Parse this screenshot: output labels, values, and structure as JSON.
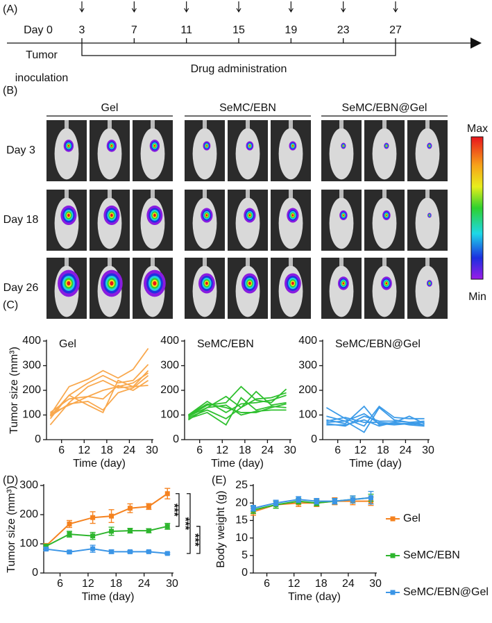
{
  "panel_labels": [
    "(A)",
    "(B)",
    "(C)",
    "(D)",
    "(E)"
  ],
  "timeline": {
    "start_label": "Day 0",
    "days": [
      3,
      7,
      11,
      15,
      19,
      23,
      27
    ],
    "inoculation_label": [
      "Tumor",
      "inoculation"
    ],
    "administration_label": "Drug administration"
  },
  "imaging": {
    "groups": [
      "Gel",
      "SeMC/EBN",
      "SeMC/EBN@Gel"
    ],
    "rows": [
      "Day 3",
      "Day 18",
      "Day 26"
    ],
    "colorbar": {
      "max_label": "Max",
      "min_label": "Min"
    }
  },
  "chart_data": [
    {
      "type": "line",
      "title": "Gel",
      "ylabel": "Tumor size (mm³)",
      "xlabel": "Time (day)",
      "x": [
        3,
        8,
        13,
        17,
        21,
        25,
        29
      ],
      "xlim": [
        2,
        30
      ],
      "xticks": [
        6,
        12,
        18,
        24,
        30
      ],
      "ylim": [
        0,
        400
      ],
      "yticks": [
        0,
        100,
        200,
        300,
        400
      ],
      "series": [
        {
          "color": "#f9a84d",
          "values": [
            100,
            215,
            245,
            280,
            250,
            285,
            370
          ]
        },
        {
          "color": "#f9a84d",
          "values": [
            85,
            180,
            230,
            260,
            230,
            240,
            305
          ]
        },
        {
          "color": "#f9a84d",
          "values": [
            60,
            150,
            215,
            240,
            210,
            215,
            280
          ]
        },
        {
          "color": "#f9a84d",
          "values": [
            110,
            165,
            175,
            200,
            215,
            230,
            270
          ]
        },
        {
          "color": "#f9a84d",
          "values": [
            95,
            145,
            155,
            120,
            190,
            210,
            260
          ]
        },
        {
          "color": "#f9a84d",
          "values": [
            105,
            140,
            175,
            165,
            220,
            200,
            240
          ]
        },
        {
          "color": "#f9a84d",
          "values": [
            95,
            180,
            140,
            110,
            240,
            215,
            220
          ]
        }
      ]
    },
    {
      "type": "line",
      "title": "SeMC/EBN",
      "xlabel": "Time (day)",
      "x": [
        3,
        8,
        13,
        17,
        21,
        25,
        29
      ],
      "xlim": [
        2,
        30
      ],
      "xticks": [
        6,
        12,
        18,
        24,
        30
      ],
      "ylim": [
        0,
        400
      ],
      "yticks": [
        0,
        100,
        200,
        300,
        400
      ],
      "series": [
        {
          "color": "#2fc02f",
          "values": [
            95,
            140,
            150,
            215,
            160,
            150,
            205
          ]
        },
        {
          "color": "#2fc02f",
          "values": [
            80,
            130,
            175,
            130,
            165,
            170,
            190
          ]
        },
        {
          "color": "#2fc02f",
          "values": [
            100,
            155,
            110,
            145,
            150,
            160,
            180
          ]
        },
        {
          "color": "#2fc02f",
          "values": [
            90,
            120,
            85,
            130,
            195,
            140,
            150
          ]
        },
        {
          "color": "#2fc02f",
          "values": [
            85,
            110,
            60,
            170,
            120,
            135,
            130
          ]
        },
        {
          "color": "#2fc02f",
          "values": [
            100,
            145,
            130,
            110,
            110,
            130,
            145
          ]
        },
        {
          "color": "#2fc02f",
          "values": [
            95,
            130,
            140,
            100,
            115,
            120,
            120
          ]
        }
      ]
    },
    {
      "type": "line",
      "title": "SeMC/EBN@Gel",
      "xlabel": "Time (day)",
      "x": [
        3,
        8,
        13,
        17,
        21,
        25,
        29
      ],
      "xlim": [
        2,
        30
      ],
      "xticks": [
        6,
        12,
        18,
        24,
        30
      ],
      "ylim": [
        0,
        400
      ],
      "yticks": [
        0,
        100,
        200,
        300,
        400
      ],
      "series": [
        {
          "color": "#3c9be8",
          "values": [
            130,
            85,
            55,
            135,
            90,
            85,
            85
          ]
        },
        {
          "color": "#3c9be8",
          "values": [
            95,
            75,
            30,
            130,
            80,
            70,
            75
          ]
        },
        {
          "color": "#3c9be8",
          "values": [
            80,
            65,
            135,
            60,
            70,
            95,
            65
          ]
        },
        {
          "color": "#3c9be8",
          "values": [
            75,
            90,
            70,
            70,
            65,
            65,
            60
          ]
        },
        {
          "color": "#3c9be8",
          "values": [
            65,
            55,
            95,
            75,
            75,
            70,
            60
          ]
        },
        {
          "color": "#3c9be8",
          "values": [
            60,
            60,
            80,
            55,
            70,
            60,
            55
          ]
        },
        {
          "color": "#3c9be8",
          "values": [
            70,
            75,
            105,
            65,
            60,
            65,
            70
          ]
        }
      ]
    },
    {
      "type": "line",
      "ylabel": "Tumor size (mm³)",
      "xlabel": "Time (day)",
      "markers": true,
      "x": [
        3,
        8,
        13,
        17,
        21,
        25,
        29
      ],
      "xlim": [
        2.5,
        30
      ],
      "xticks": [
        6,
        12,
        18,
        24,
        30
      ],
      "ylim": [
        0,
        300
      ],
      "yticks": [
        0,
        100,
        200,
        300
      ],
      "series": [
        {
          "color": "#f5821f",
          "values": [
            93,
            168,
            190,
            195,
            222,
            228,
            272
          ],
          "errors": [
            8,
            12,
            20,
            22,
            15,
            10,
            18
          ]
        },
        {
          "color": "#2db52d",
          "values": [
            92,
            133,
            127,
            143,
            145,
            145,
            160
          ],
          "errors": [
            6,
            10,
            12,
            14,
            8,
            7,
            10
          ]
        },
        {
          "color": "#3b95e6",
          "values": [
            82,
            72,
            83,
            73,
            73,
            73,
            67
          ],
          "errors": [
            5,
            4,
            12,
            6,
            4,
            3,
            3
          ]
        }
      ],
      "annotations": [
        "***",
        "***",
        "***"
      ]
    },
    {
      "type": "line",
      "ylabel": "Body weight (g)",
      "xlabel": "Time (day)",
      "markers": true,
      "legend": "right",
      "x": [
        3,
        8,
        13,
        17,
        21,
        25,
        29
      ],
      "xlim": [
        3,
        30
      ],
      "xticks": [
        6,
        12,
        18,
        24,
        30
      ],
      "ylim": [
        0,
        25
      ],
      "yticks": [
        0,
        5,
        10,
        15,
        20,
        25
      ],
      "series": [
        {
          "name": "Gel",
          "color": "#f5821f",
          "values": [
            17.5,
            19.5,
            20,
            20,
            20.5,
            20.5,
            20.5
          ],
          "errors": [
            1,
            1,
            1,
            1,
            1,
            1,
            1.2
          ]
        },
        {
          "name": "SeMC/EBN",
          "color": "#2db52d",
          "values": [
            18,
            19.5,
            20.5,
            20,
            20.5,
            21,
            21.5
          ],
          "errors": [
            1,
            1,
            0.8,
            0.8,
            0.8,
            1,
            1
          ]
        },
        {
          "name": "SeMC/EBN@Gel",
          "color": "#3b95e6",
          "values": [
            18.5,
            20,
            21,
            20.5,
            20.5,
            21,
            21.5
          ],
          "errors": [
            0.8,
            0.8,
            0.8,
            0.8,
            0.8,
            1,
            1.8
          ]
        }
      ]
    }
  ]
}
